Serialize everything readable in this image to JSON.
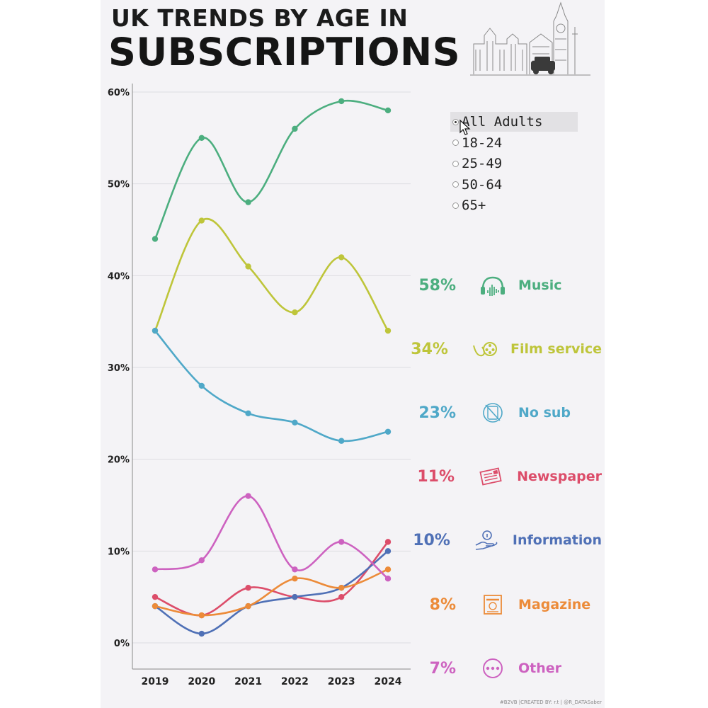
{
  "title": {
    "line1": "UK TRENDS BY AGE IN",
    "line2": "SUBSCRIPTIONS"
  },
  "credit": "#B2VB |CREATED BY: r.t | @R_DATASaber",
  "legend": {
    "options": [
      "All Adults",
      "18-24",
      "25-49",
      "50-64",
      "65+"
    ],
    "selected": "All Adults"
  },
  "chart_data": {
    "type": "line",
    "x": [
      "2019",
      "2020",
      "2021",
      "2022",
      "2023",
      "2024"
    ],
    "ylim": [
      0,
      60
    ],
    "yticks": [
      "0%",
      "10%",
      "20%",
      "30%",
      "40%",
      "50%",
      "60%"
    ],
    "grid": "horizontal",
    "series": [
      {
        "name": "Music",
        "values": [
          44,
          55,
          48,
          56,
          59,
          58
        ],
        "color": "#4cae7f",
        "label": "58%",
        "icon": "headphones-icon"
      },
      {
        "name": "Film service",
        "values": [
          34,
          46,
          41,
          36,
          42,
          34
        ],
        "color": "#bec53a",
        "label": "34%",
        "icon": "film-reel-icon"
      },
      {
        "name": "No sub",
        "values": [
          34,
          28,
          25,
          24,
          22,
          23
        ],
        "color": "#4fa8c8",
        "label": "23%",
        "icon": "no-subscription-icon"
      },
      {
        "name": "Newspaper",
        "values": [
          5,
          3,
          6,
          5,
          5,
          11
        ],
        "color": "#dc4d6a",
        "label": "11%",
        "icon": "newspaper-icon"
      },
      {
        "name": "Information",
        "values": [
          4,
          1,
          4,
          5,
          6,
          10
        ],
        "color": "#4f70b6",
        "label": "10%",
        "icon": "info-hand-icon"
      },
      {
        "name": "Magazine",
        "values": [
          4,
          3,
          4,
          7,
          6,
          8
        ],
        "color": "#ec8b39",
        "label": "8%",
        "icon": "magazine-icon"
      },
      {
        "name": "Other",
        "values": [
          8,
          9,
          16,
          8,
          11,
          7
        ],
        "color": "#cd62c0",
        "label": "7%",
        "icon": "more-dots-icon"
      }
    ]
  }
}
